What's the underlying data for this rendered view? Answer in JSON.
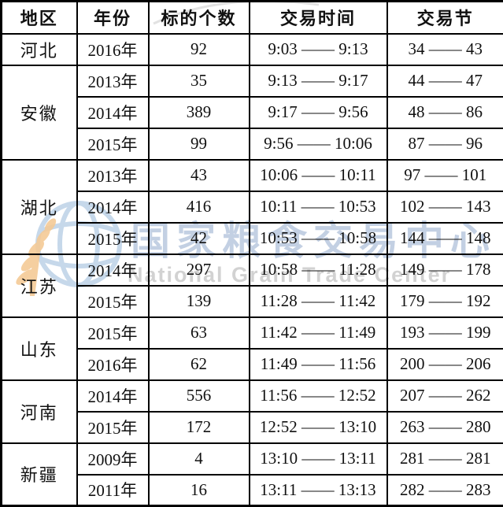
{
  "watermark": {
    "cn_text": "国家粮食交易中心",
    "en_text": "National Grain Trade Center",
    "cn_color": "#c3d0e3",
    "en_color": "#d2d2d2",
    "logo": {
      "name": "grain-trade-center-logo",
      "globe_color": "#b9cfe6",
      "wheat_color": "#f4ca96"
    }
  },
  "table": {
    "headers": [
      "地区",
      "年份",
      "标的个数",
      "交易时间",
      "交易节"
    ],
    "groups": [
      {
        "region": "河北",
        "rows": [
          [
            "2016年",
            "92",
            "9:03 —— 9:13",
            "34 —— 43"
          ]
        ]
      },
      {
        "region": "安徽",
        "rows": [
          [
            "2013年",
            "35",
            "9:13 —— 9:17",
            "44 —— 47"
          ],
          [
            "2014年",
            "389",
            "9:17 —— 9:56",
            "48 —— 86"
          ],
          [
            "2015年",
            "99",
            "9:56 —— 10:06",
            "87 —— 96"
          ]
        ]
      },
      {
        "region": "湖北",
        "rows": [
          [
            "2013年",
            "43",
            "10:06 —— 10:11",
            "97 —— 101"
          ],
          [
            "2014年",
            "416",
            "10:11 —— 10:53",
            "102 —— 143"
          ],
          [
            "2015年",
            "42",
            "10:53 —— 10:58",
            "144 —— 148"
          ]
        ]
      },
      {
        "region": "江苏",
        "rows": [
          [
            "2014年",
            "297",
            "10:58 —— 11:28",
            "149 —— 178"
          ],
          [
            "2015年",
            "139",
            "11:28 —— 11:42",
            "179 —— 192"
          ]
        ]
      },
      {
        "region": "山东",
        "rows": [
          [
            "2015年",
            "63",
            "11:42 —— 11:49",
            "193 —— 199"
          ],
          [
            "2016年",
            "62",
            "11:49 —— 11:56",
            "200 —— 206"
          ]
        ]
      },
      {
        "region": "河南",
        "rows": [
          [
            "2014年",
            "556",
            "11:56 —— 12:52",
            "207 —— 262"
          ],
          [
            "2015年",
            "172",
            "12:52 —— 13:10",
            "263 —— 280"
          ]
        ]
      },
      {
        "region": "新疆",
        "rows": [
          [
            "2009年",
            "4",
            "13:10 —— 13:11",
            "281 —— 281"
          ],
          [
            "2011年",
            "16",
            "13:11 —— 13:13",
            "282 —— 283"
          ]
        ]
      }
    ]
  }
}
